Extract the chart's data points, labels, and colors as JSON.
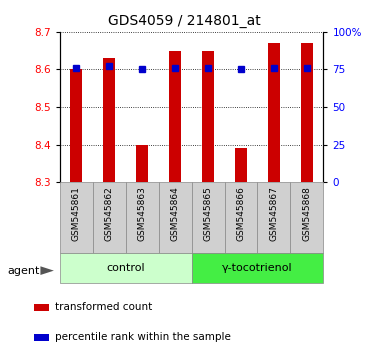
{
  "title": "GDS4059 / 214801_at",
  "samples": [
    "GSM545861",
    "GSM545862",
    "GSM545863",
    "GSM545864",
    "GSM545865",
    "GSM545866",
    "GSM545867",
    "GSM545868"
  ],
  "bar_values": [
    8.6,
    8.63,
    8.4,
    8.65,
    8.65,
    8.39,
    8.67,
    8.67
  ],
  "bar_base": 8.3,
  "percentile_values": [
    8.605,
    8.61,
    8.6,
    8.605,
    8.605,
    8.6,
    8.605,
    8.605
  ],
  "ylim": [
    8.3,
    8.7
  ],
  "yticks": [
    8.3,
    8.4,
    8.5,
    8.6,
    8.7
  ],
  "right_yticks": [
    0,
    25,
    50,
    75,
    100
  ],
  "right_ytick_labels": [
    "0",
    "25",
    "50",
    "75",
    "100%"
  ],
  "bar_color": "#cc0000",
  "percentile_color": "#0000cc",
  "bar_width": 0.35,
  "groups": [
    {
      "label": "control",
      "indices": [
        0,
        1,
        2,
        3
      ],
      "color": "#ccffcc"
    },
    {
      "label": "γ-tocotrienol",
      "indices": [
        4,
        5,
        6,
        7
      ],
      "color": "#44ee44"
    }
  ],
  "agent_label": "agent",
  "legend_items": [
    {
      "color": "#cc0000",
      "label": "transformed count"
    },
    {
      "color": "#0000cc",
      "label": "percentile rank within the sample"
    }
  ],
  "title_fontsize": 10,
  "tick_fontsize": 7.5,
  "label_fontsize": 8,
  "background_color": "#ffffff"
}
